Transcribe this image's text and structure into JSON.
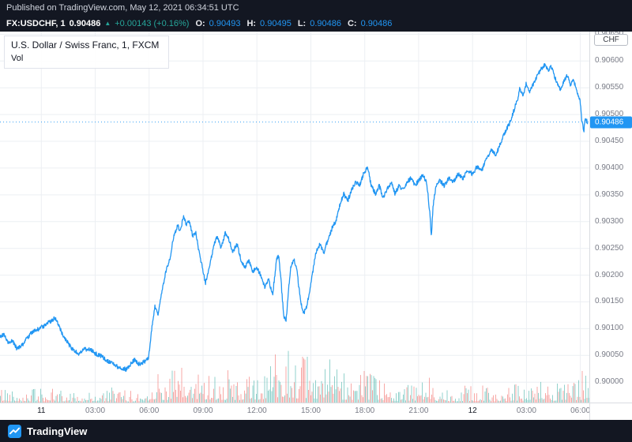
{
  "header": {
    "published": "Published on TradingView.com, May 12, 2021 06:34:51 UTC"
  },
  "symbol_bar": {
    "symbol": "FX:USDCHF, 1",
    "price": "0.90486",
    "direction_arrow": "▲",
    "change": "+0.00143 (+0.16%)",
    "ohlc": [
      {
        "label": "O:",
        "value": "0.90493"
      },
      {
        "label": "H:",
        "value": "0.90495"
      },
      {
        "label": "L:",
        "value": "0.90486"
      },
      {
        "label": "C:",
        "value": "0.90486"
      }
    ]
  },
  "legend": {
    "title": "U.S. Dollar / Swiss Franc, 1, FXCM",
    "indicator": "Vol"
  },
  "axis": {
    "currency_badge": "CHF",
    "price_badge": "0.90486"
  },
  "footer": {
    "brand": "TradingView"
  },
  "colors": {
    "line": "#2196f3",
    "grid": "#eceff3",
    "vol_up": "#26a69a",
    "vol_down": "#ef5350",
    "badge_bg": "#2196f3",
    "header_bg": "#131722",
    "change_green": "#26a69a"
  },
  "chart_data": {
    "type": "line",
    "title": "U.S. Dollar / Swiss Franc, 1, FXCM",
    "symbol": "FX:USDCHF",
    "interval": "1",
    "ylabel": "CHF",
    "x_unit": "hours (0 = May 11 00:00 UTC, 24 = May 12 00:00 UTC)",
    "x_range": [
      -2.3,
      30.5
    ],
    "y_range": [
      0.89962,
      0.90655
    ],
    "grid": true,
    "last_price": 0.90486,
    "x_ticks": [
      {
        "t": 0,
        "label": "11",
        "day": true
      },
      {
        "t": 3,
        "label": "03:00"
      },
      {
        "t": 6,
        "label": "06:00"
      },
      {
        "t": 9,
        "label": "09:00"
      },
      {
        "t": 12,
        "label": "12:00"
      },
      {
        "t": 15,
        "label": "15:00"
      },
      {
        "t": 18,
        "label": "18:00"
      },
      {
        "t": 21,
        "label": "21:00"
      },
      {
        "t": 24,
        "label": "12",
        "day": true
      },
      {
        "t": 27,
        "label": "03:00"
      },
      {
        "t": 30,
        "label": "06:00"
      }
    ],
    "y_ticks": [
      "0.90650",
      "0.90600",
      "0.90550",
      "0.90500",
      "0.90450",
      "0.90400",
      "0.90350",
      "0.90300",
      "0.90250",
      "0.90200",
      "0.90150",
      "0.90100",
      "0.90050",
      "0.90000"
    ],
    "price_points": [
      [
        -2.3,
        0.90085
      ],
      [
        -2.08,
        0.9009
      ],
      [
        -1.85,
        0.90072
      ],
      [
        -1.6,
        0.90078
      ],
      [
        -1.35,
        0.90062
      ],
      [
        -1.1,
        0.90068
      ],
      [
        -0.85,
        0.9008
      ],
      [
        -0.6,
        0.9009
      ],
      [
        -0.35,
        0.90096
      ],
      [
        -0.1,
        0.901
      ],
      [
        0.12,
        0.90105
      ],
      [
        0.45,
        0.90112
      ],
      [
        0.78,
        0.9012
      ],
      [
        1.1,
        0.90095
      ],
      [
        1.44,
        0.90075
      ],
      [
        1.77,
        0.9006
      ],
      [
        2.1,
        0.90053
      ],
      [
        2.43,
        0.90062
      ],
      [
        2.76,
        0.9006
      ],
      [
        3.09,
        0.90052
      ],
      [
        3.42,
        0.90047
      ],
      [
        3.75,
        0.90038
      ],
      [
        4.08,
        0.90032
      ],
      [
        4.4,
        0.90026
      ],
      [
        4.73,
        0.90024
      ],
      [
        4.95,
        0.90033
      ],
      [
        5.17,
        0.90042
      ],
      [
        5.39,
        0.90034
      ],
      [
        5.61,
        0.90036
      ],
      [
        5.8,
        0.9004
      ],
      [
        5.97,
        0.90046
      ],
      [
        6.14,
        0.90097
      ],
      [
        6.32,
        0.90141
      ],
      [
        6.49,
        0.90126
      ],
      [
        6.71,
        0.9017
      ],
      [
        6.93,
        0.90207
      ],
      [
        7.15,
        0.90229
      ],
      [
        7.37,
        0.90272
      ],
      [
        7.59,
        0.90294
      ],
      [
        7.72,
        0.9028
      ],
      [
        7.9,
        0.90309
      ],
      [
        8.08,
        0.90294
      ],
      [
        8.25,
        0.90301
      ],
      [
        8.43,
        0.90272
      ],
      [
        8.6,
        0.9028
      ],
      [
        8.78,
        0.90243
      ],
      [
        8.96,
        0.90214
      ],
      [
        9.13,
        0.90185
      ],
      [
        9.26,
        0.902
      ],
      [
        9.44,
        0.90229
      ],
      [
        9.61,
        0.90258
      ],
      [
        9.79,
        0.90272
      ],
      [
        10.01,
        0.9025
      ],
      [
        10.23,
        0.9028
      ],
      [
        10.45,
        0.90265
      ],
      [
        10.67,
        0.90243
      ],
      [
        10.89,
        0.90258
      ],
      [
        11.11,
        0.90229
      ],
      [
        11.33,
        0.90214
      ],
      [
        11.55,
        0.90229
      ],
      [
        11.77,
        0.90207
      ],
      [
        11.99,
        0.90214
      ],
      [
        12.21,
        0.902
      ],
      [
        12.43,
        0.90178
      ],
      [
        12.65,
        0.90192
      ],
      [
        12.87,
        0.90163
      ],
      [
        13.09,
        0.90229
      ],
      [
        13.22,
        0.90236
      ],
      [
        13.35,
        0.90185
      ],
      [
        13.48,
        0.90127
      ],
      [
        13.62,
        0.90112
      ],
      [
        13.75,
        0.9017
      ],
      [
        13.88,
        0.90214
      ],
      [
        14.06,
        0.90229
      ],
      [
        14.23,
        0.90207
      ],
      [
        14.41,
        0.90156
      ],
      [
        14.58,
        0.90127
      ],
      [
        14.76,
        0.90141
      ],
      [
        14.94,
        0.9017
      ],
      [
        15.11,
        0.90207
      ],
      [
        15.29,
        0.90243
      ],
      [
        15.51,
        0.90258
      ],
      [
        15.73,
        0.90243
      ],
      [
        15.95,
        0.90265
      ],
      [
        16.17,
        0.90287
      ],
      [
        16.39,
        0.90301
      ],
      [
        16.61,
        0.9033
      ],
      [
        16.83,
        0.90352
      ],
      [
        17.05,
        0.90338
      ],
      [
        17.27,
        0.9036
      ],
      [
        17.49,
        0.90374
      ],
      [
        17.71,
        0.90367
      ],
      [
        17.93,
        0.90389
      ],
      [
        18.15,
        0.90401
      ],
      [
        18.37,
        0.90367
      ],
      [
        18.59,
        0.90352
      ],
      [
        18.81,
        0.90367
      ],
      [
        19.03,
        0.90345
      ],
      [
        19.25,
        0.9036
      ],
      [
        19.47,
        0.90374
      ],
      [
        19.69,
        0.90352
      ],
      [
        19.91,
        0.90367
      ],
      [
        20.13,
        0.9036
      ],
      [
        20.35,
        0.90374
      ],
      [
        20.57,
        0.90381
      ],
      [
        20.79,
        0.90367
      ],
      [
        21.01,
        0.90377
      ],
      [
        21.23,
        0.90386
      ],
      [
        21.45,
        0.90374
      ],
      [
        21.62,
        0.90316
      ],
      [
        21.71,
        0.90272
      ],
      [
        21.8,
        0.9033
      ],
      [
        21.97,
        0.90367
      ],
      [
        22.19,
        0.90377
      ],
      [
        22.41,
        0.90367
      ],
      [
        22.68,
        0.90381
      ],
      [
        22.94,
        0.90374
      ],
      [
        23.2,
        0.90389
      ],
      [
        23.47,
        0.90381
      ],
      [
        23.73,
        0.90396
      ],
      [
        23.99,
        0.90389
      ],
      [
        24.26,
        0.90403
      ],
      [
        24.52,
        0.90396
      ],
      [
        24.78,
        0.90418
      ],
      [
        25.05,
        0.90433
      ],
      [
        25.31,
        0.90425
      ],
      [
        25.57,
        0.90447
      ],
      [
        25.84,
        0.90469
      ],
      [
        26.06,
        0.90484
      ],
      [
        26.28,
        0.90506
      ],
      [
        26.5,
        0.90528
      ],
      [
        26.63,
        0.90549
      ],
      [
        26.81,
        0.90535
      ],
      [
        26.98,
        0.90557
      ],
      [
        27.16,
        0.90542
      ],
      [
        27.38,
        0.90557
      ],
      [
        27.6,
        0.90572
      ],
      [
        27.82,
        0.90586
      ],
      [
        28.04,
        0.90594
      ],
      [
        28.21,
        0.90582
      ],
      [
        28.39,
        0.9059
      ],
      [
        28.56,
        0.90572
      ],
      [
        28.74,
        0.90557
      ],
      [
        28.92,
        0.90546
      ],
      [
        29.09,
        0.90564
      ],
      [
        29.27,
        0.90572
      ],
      [
        29.44,
        0.90557
      ],
      [
        29.62,
        0.90564
      ],
      [
        29.8,
        0.90546
      ],
      [
        29.97,
        0.90528
      ],
      [
        30.1,
        0.90484
      ],
      [
        30.19,
        0.90469
      ],
      [
        30.28,
        0.90491
      ],
      [
        30.41,
        0.90486
      ]
    ],
    "volume_envelope": [
      [
        -2.3,
        22
      ],
      [
        -1,
        18
      ],
      [
        0,
        20
      ],
      [
        1,
        16
      ],
      [
        2,
        14
      ],
      [
        3,
        16
      ],
      [
        4,
        20
      ],
      [
        5,
        16
      ],
      [
        5.9,
        18
      ],
      [
        6.1,
        60
      ],
      [
        6.4,
        38
      ],
      [
        7,
        42
      ],
      [
        7.6,
        48
      ],
      [
        8.2,
        40
      ],
      [
        8.8,
        44
      ],
      [
        9.2,
        50
      ],
      [
        9.8,
        38
      ],
      [
        10.4,
        42
      ],
      [
        11,
        32
      ],
      [
        11.6,
        36
      ],
      [
        12.2,
        40
      ],
      [
        12.7,
        60
      ],
      [
        13.1,
        80
      ],
      [
        13.35,
        95
      ],
      [
        13.6,
        85
      ],
      [
        14,
        70
      ],
      [
        14.5,
        60
      ],
      [
        15,
        58
      ],
      [
        15.5,
        48
      ],
      [
        16,
        56
      ],
      [
        16.5,
        42
      ],
      [
        17,
        46
      ],
      [
        17.5,
        40
      ],
      [
        18,
        42
      ],
      [
        18.5,
        34
      ],
      [
        19,
        30
      ],
      [
        19.5,
        28
      ],
      [
        20,
        26
      ],
      [
        20.5,
        24
      ],
      [
        21,
        26
      ],
      [
        21.5,
        44
      ],
      [
        22,
        26
      ],
      [
        22.5,
        22
      ],
      [
        23,
        20
      ],
      [
        23.5,
        22
      ],
      [
        24,
        26
      ],
      [
        24.5,
        22
      ],
      [
        25,
        20
      ],
      [
        25.5,
        22
      ],
      [
        26,
        24
      ],
      [
        26.5,
        28
      ],
      [
        27,
        30
      ],
      [
        27.5,
        26
      ],
      [
        28,
        28
      ],
      [
        28.5,
        24
      ],
      [
        29,
        28
      ],
      [
        29.5,
        30
      ],
      [
        29.9,
        38
      ],
      [
        30.2,
        46
      ],
      [
        30.45,
        40
      ]
    ],
    "noise": {
      "price_amplitude": 4e-05,
      "seed": 42
    }
  }
}
